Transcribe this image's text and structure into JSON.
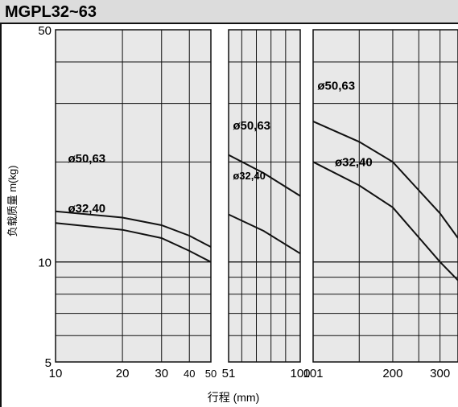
{
  "title": "MGPL32~63",
  "chart_data": {
    "type": "line",
    "title": "MGPL32~63",
    "xlabel": "行程 (mm)",
    "ylabel": "负载质量  m(kg)",
    "y_scale": "log",
    "ylim": [
      5,
      50
    ],
    "y_ticks": [
      {
        "value": 50,
        "label": "50"
      },
      {
        "value": 10,
        "label": "10"
      },
      {
        "value": 5,
        "label": "5"
      }
    ],
    "grid": true,
    "panels": [
      {
        "xlim": [
          10,
          50
        ],
        "x_scale": "log",
        "x_ticks": [
          {
            "value": 10,
            "label": "10"
          },
          {
            "value": 20,
            "label": "20"
          },
          {
            "value": 30,
            "label": "30"
          },
          {
            "value": 40,
            "label": "40"
          },
          {
            "value": 50,
            "label": "50"
          }
        ],
        "series": [
          {
            "name": "ø50,63",
            "points": [
              [
                10,
                14.2
              ],
              [
                20,
                13.6
              ],
              [
                30,
                12.9
              ],
              [
                40,
                12.0
              ],
              [
                50,
                11.1
              ]
            ]
          },
          {
            "name": "ø32,40",
            "points": [
              [
                10,
                13.1
              ],
              [
                20,
                12.5
              ],
              [
                30,
                11.8
              ],
              [
                40,
                10.8
              ],
              [
                50,
                10.0
              ]
            ]
          }
        ]
      },
      {
        "xlim": [
          51,
          100
        ],
        "x_scale": "linear",
        "x_ticks": [
          {
            "value": 51,
            "label": "51"
          },
          {
            "value": 100,
            "label": "100"
          }
        ],
        "series": [
          {
            "name": "ø50,63",
            "points": [
              [
                51,
                21.0
              ],
              [
                75,
                18.5
              ],
              [
                100,
                15.8
              ]
            ]
          },
          {
            "name": "ø32,40",
            "points": [
              [
                51,
                13.9
              ],
              [
                75,
                12.4
              ],
              [
                100,
                10.6
              ]
            ]
          }
        ]
      },
      {
        "xlim": [
          101,
          350
        ],
        "x_scale": "log",
        "x_ticks": [
          {
            "value": 101,
            "label": "101"
          },
          {
            "value": 200,
            "label": "200"
          },
          {
            "value": 300,
            "label": "300"
          }
        ],
        "series": [
          {
            "name": "ø50,63",
            "points": [
              [
                101,
                26.5
              ],
              [
                150,
                23.0
              ],
              [
                200,
                20.0
              ],
              [
                300,
                14.0
              ],
              [
                350,
                11.8
              ]
            ]
          },
          {
            "name": "ø32,40",
            "points": [
              [
                101,
                20.0
              ],
              [
                150,
                17.0
              ],
              [
                200,
                14.6
              ],
              [
                300,
                10.0
              ],
              [
                350,
                8.8
              ]
            ]
          }
        ]
      }
    ]
  }
}
